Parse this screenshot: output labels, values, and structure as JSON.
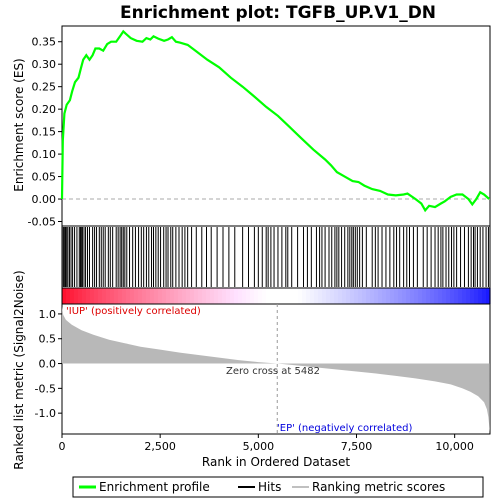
{
  "chart_data": {
    "type": "line",
    "title": "Enrichment plot: TGFB_UP.V1_DN",
    "xlabel": "Rank in Ordered Dataset",
    "ylabel_top": "Enrichment score (ES)",
    "ylabel_bottom": "Ranked list metric (Signal2Noise)",
    "x_range": [
      0,
      10900
    ],
    "x_ticks": [
      0,
      2500,
      5000,
      7500,
      10000
    ],
    "x_tick_labels": [
      "0",
      "2,500",
      "5,000",
      "7,500",
      "10,000"
    ],
    "es_ylim": [
      -0.06,
      0.385
    ],
    "es_ticks": [
      -0.05,
      0.0,
      0.05,
      0.1,
      0.15,
      0.2,
      0.25,
      0.3,
      0.35
    ],
    "es_tick_labels": [
      "-0.05",
      "0.00",
      "0.05",
      "0.10",
      "0.15",
      "0.20",
      "0.25",
      "0.30",
      "0.35"
    ],
    "metric_ylim": [
      -1.42,
      1.2
    ],
    "metric_ticks": [
      -1.0,
      -0.5,
      0.0,
      0.5,
      1.0
    ],
    "metric_tick_labels": [
      "-1.0",
      "-0.5",
      "0.0",
      "0.5",
      "1.0"
    ],
    "enrichment_profile": [
      [
        0,
        0.0
      ],
      [
        20,
        0.13
      ],
      [
        60,
        0.19
      ],
      [
        120,
        0.21
      ],
      [
        200,
        0.22
      ],
      [
        260,
        0.24
      ],
      [
        330,
        0.26
      ],
      [
        420,
        0.27
      ],
      [
        480,
        0.29
      ],
      [
        540,
        0.31
      ],
      [
        620,
        0.32
      ],
      [
        700,
        0.31
      ],
      [
        780,
        0.32
      ],
      [
        850,
        0.335
      ],
      [
        950,
        0.335
      ],
      [
        1050,
        0.33
      ],
      [
        1150,
        0.345
      ],
      [
        1250,
        0.35
      ],
      [
        1380,
        0.35
      ],
      [
        1500,
        0.365
      ],
      [
        1560,
        0.373
      ],
      [
        1620,
        0.368
      ],
      [
        1750,
        0.358
      ],
      [
        1900,
        0.352
      ],
      [
        2050,
        0.35
      ],
      [
        2150,
        0.358
      ],
      [
        2250,
        0.355
      ],
      [
        2330,
        0.362
      ],
      [
        2450,
        0.357
      ],
      [
        2600,
        0.352
      ],
      [
        2700,
        0.355
      ],
      [
        2800,
        0.36
      ],
      [
        2900,
        0.35
      ],
      [
        3000,
        0.348
      ],
      [
        3200,
        0.343
      ],
      [
        3400,
        0.33
      ],
      [
        3700,
        0.31
      ],
      [
        4000,
        0.293
      ],
      [
        4300,
        0.27
      ],
      [
        4600,
        0.25
      ],
      [
        4900,
        0.228
      ],
      [
        5200,
        0.205
      ],
      [
        5500,
        0.185
      ],
      [
        5800,
        0.16
      ],
      [
        6100,
        0.135
      ],
      [
        6400,
        0.11
      ],
      [
        6700,
        0.088
      ],
      [
        6850,
        0.075
      ],
      [
        7000,
        0.06
      ],
      [
        7200,
        0.05
      ],
      [
        7400,
        0.04
      ],
      [
        7550,
        0.038
      ],
      [
        7700,
        0.03
      ],
      [
        7900,
        0.022
      ],
      [
        8100,
        0.018
      ],
      [
        8300,
        0.01
      ],
      [
        8500,
        0.008
      ],
      [
        8700,
        0.01
      ],
      [
        8800,
        0.012
      ],
      [
        9000,
        0.0
      ],
      [
        9150,
        -0.01
      ],
      [
        9250,
        -0.025
      ],
      [
        9350,
        -0.015
      ],
      [
        9500,
        -0.018
      ],
      [
        9650,
        -0.01
      ],
      [
        9750,
        -0.005
      ],
      [
        9900,
        0.005
      ],
      [
        10050,
        0.01
      ],
      [
        10200,
        0.01
      ],
      [
        10350,
        0.0
      ],
      [
        10450,
        -0.012
      ],
      [
        10550,
        0.0
      ],
      [
        10650,
        0.015
      ],
      [
        10750,
        0.01
      ],
      [
        10880,
        0.0
      ]
    ],
    "hits": [
      5,
      35,
      60,
      90,
      120,
      150,
      190,
      230,
      270,
      320,
      380,
      440,
      470,
      500,
      520,
      560,
      600,
      650,
      700,
      780,
      830,
      880,
      950,
      1000,
      1050,
      1100,
      1180,
      1230,
      1290,
      1380,
      1430,
      1480,
      1520,
      1560,
      1600,
      1650,
      1720,
      1800,
      1870,
      1950,
      2020,
      2080,
      2150,
      2210,
      2280,
      2330,
      2390,
      2450,
      2510,
      2590,
      2650,
      2700,
      2770,
      2820,
      2900,
      2980,
      3060,
      3130,
      3200,
      3300,
      3420,
      3560,
      3680,
      3800,
      3950,
      4100,
      4250,
      4400,
      4600,
      4750,
      4900,
      5000,
      5100,
      5200,
      5250,
      5320,
      5400,
      5500,
      5600,
      5700,
      5750,
      5850,
      6000,
      6150,
      6250,
      6350,
      6480,
      6560,
      6620,
      6700,
      6800,
      6870,
      6950,
      7000,
      7050,
      7120,
      7200,
      7280,
      7330,
      7380,
      7420,
      7470,
      7520,
      7580,
      7650,
      7750,
      7900,
      7980,
      8050,
      8150,
      8250,
      8350,
      8450,
      8520,
      8600,
      8700,
      8780,
      8850,
      8950,
      9050,
      9200,
      9300,
      9400,
      9500,
      9580,
      9650,
      9700,
      9780,
      9850,
      9920,
      9980,
      10050,
      10150,
      10250,
      10350,
      10420,
      10480,
      10520,
      10580,
      10650,
      10720,
      10800,
      10860
    ],
    "metric_profile": [
      [
        0,
        1.15
      ],
      [
        30,
        0.98
      ],
      [
        100,
        0.88
      ],
      [
        250,
        0.78
      ],
      [
        500,
        0.67
      ],
      [
        800,
        0.58
      ],
      [
        1200,
        0.48
      ],
      [
        1600,
        0.41
      ],
      [
        2000,
        0.34
      ],
      [
        2500,
        0.28
      ],
      [
        3000,
        0.22
      ],
      [
        3500,
        0.17
      ],
      [
        4000,
        0.12
      ],
      [
        4500,
        0.07
      ],
      [
        5000,
        0.03
      ],
      [
        5482,
        0.0
      ],
      [
        6000,
        -0.04
      ],
      [
        6500,
        -0.08
      ],
      [
        7000,
        -0.12
      ],
      [
        7500,
        -0.16
      ],
      [
        8000,
        -0.2
      ],
      [
        8500,
        -0.25
      ],
      [
        9000,
        -0.3
      ],
      [
        9500,
        -0.36
      ],
      [
        9900,
        -0.42
      ],
      [
        10200,
        -0.5
      ],
      [
        10400,
        -0.57
      ],
      [
        10600,
        -0.66
      ],
      [
        10750,
        -0.78
      ],
      [
        10820,
        -0.92
      ],
      [
        10860,
        -1.08
      ],
      [
        10880,
        -1.25
      ],
      [
        10895,
        -1.38
      ]
    ],
    "zero_cross_rank": 5482,
    "annotations": {
      "positive_label": "'IUP' (positively correlated)",
      "negative_label": "'EP' (negatively correlated)",
      "zero_cross_label": "Zero cross at 5482"
    },
    "legend": [
      {
        "label": "Enrichment profile",
        "color": "#00ff00"
      },
      {
        "label": "Hits",
        "color": "#000000"
      },
      {
        "label": "Ranking metric scores",
        "color": "#c0c0c0"
      }
    ],
    "colors": {
      "es_line": "#00ff00",
      "hit_line": "#000000",
      "metric_fill": "#b8b8b8",
      "positive_text": "#dd0000",
      "negative_text": "#0000dd",
      "heat_positive": "#ff0000",
      "heat_negative": "#0000ff"
    }
  }
}
